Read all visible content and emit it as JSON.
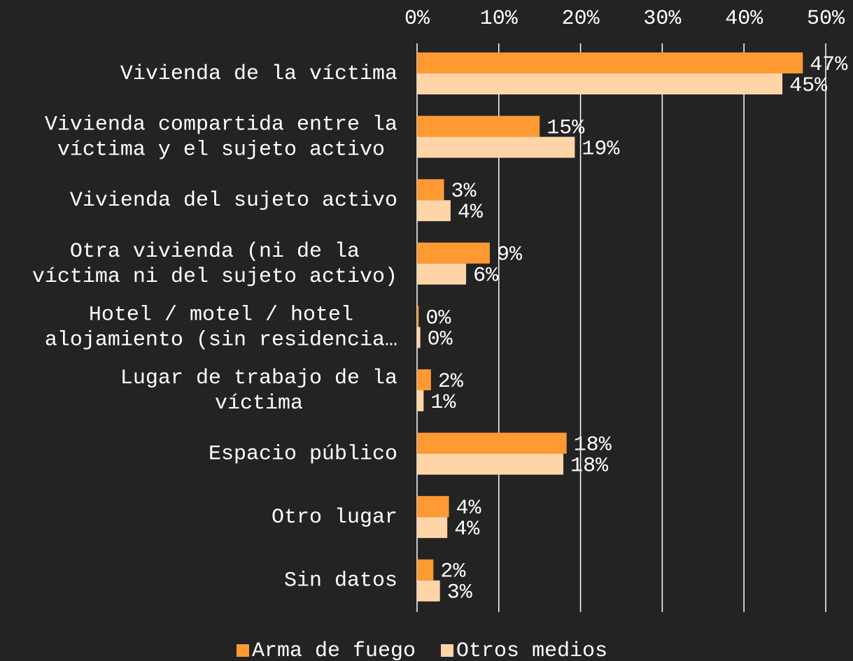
{
  "chart_data": {
    "type": "hbar",
    "categories": [
      "Vivienda de la víctima",
      "Vivienda compartida entre la víctima y el sujeto activo",
      "Vivienda del sujeto activo",
      "Otra vivienda (ni de la víctima ni del sujeto activo)",
      "Hotel / motel / hotel alojamiento (sin residencia…",
      "Lugar de trabajo de la víctima",
      "Espacio público",
      "Otro lugar",
      "Sin datos"
    ],
    "series": [
      {
        "name": "Arma de fuego",
        "color": "#ff9a33",
        "values": [
          47.2,
          15.0,
          3.3,
          8.9,
          0.2,
          1.7,
          18.3,
          3.9,
          2.0
        ],
        "value_labels": [
          "47%",
          "15%",
          "3%",
          "9%",
          "0%",
          "2%",
          "18%",
          "4%",
          "2%"
        ]
      },
      {
        "name": "Otros medios",
        "color": "#ffd5a8",
        "values": [
          44.7,
          19.3,
          4.1,
          6.0,
          0.4,
          0.8,
          17.9,
          3.7,
          2.8
        ],
        "value_labels": [
          "45%",
          "19%",
          "4%",
          "6%",
          "0%",
          "1%",
          "18%",
          "4%",
          "3%"
        ]
      }
    ],
    "xlim": [
      0,
      50
    ],
    "xticks": [
      {
        "value": 0,
        "label": "0%"
      },
      {
        "value": 10,
        "label": "10%"
      },
      {
        "value": 20,
        "label": "20%"
      },
      {
        "value": 30,
        "label": "30%"
      },
      {
        "value": 40,
        "label": "40%"
      },
      {
        "value": 50,
        "label": "50%"
      }
    ],
    "grid": true,
    "legend": "bottom"
  }
}
